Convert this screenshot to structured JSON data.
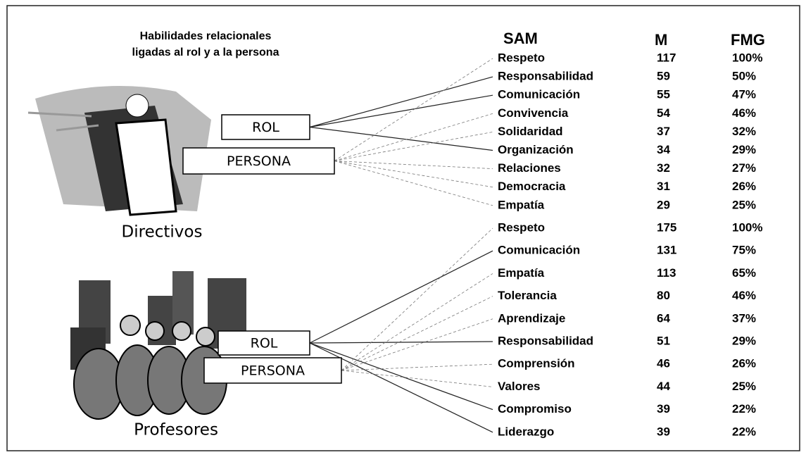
{
  "title": [
    "Habilidades relacionales",
    "ligadas al rol y a la persona"
  ],
  "header": {
    "sam": "SAM",
    "m": "M",
    "fmg": "FMG"
  },
  "groups": [
    {
      "name": "Directivos",
      "rol": "ROL",
      "persona": "PERSONA",
      "rows": [
        [
          "Respeto",
          117,
          "100%"
        ],
        [
          "Responsabilidad",
          59,
          "50%"
        ],
        [
          "Comunicación",
          55,
          "47%"
        ],
        [
          "Convivencia",
          54,
          "46%"
        ],
        [
          "Solidaridad",
          37,
          "32%"
        ],
        [
          "Organización",
          34,
          "29%"
        ],
        [
          "Relaciones",
          32,
          "27%"
        ],
        [
          "Democracia",
          31,
          "26%"
        ],
        [
          "Empatía",
          29,
          "25%"
        ]
      ]
    },
    {
      "name": "Profesores",
      "rol": "ROL",
      "persona": "PERSONA",
      "rows": [
        [
          "Respeto",
          175,
          "100%"
        ],
        [
          "Comunicación",
          131,
          "75%"
        ],
        [
          "Empatía",
          113,
          "65%"
        ],
        [
          "Tolerancia",
          80,
          "46%"
        ],
        [
          "Aprendizaje",
          64,
          "37%"
        ],
        [
          "Responsabilidad",
          51,
          "29%"
        ],
        [
          "Comprensión",
          46,
          "26%"
        ],
        [
          "Valores",
          44,
          "25%"
        ],
        [
          "Compromiso",
          39,
          "22%"
        ],
        [
          "Liderazgo",
          39,
          "22%"
        ]
      ]
    }
  ]
}
